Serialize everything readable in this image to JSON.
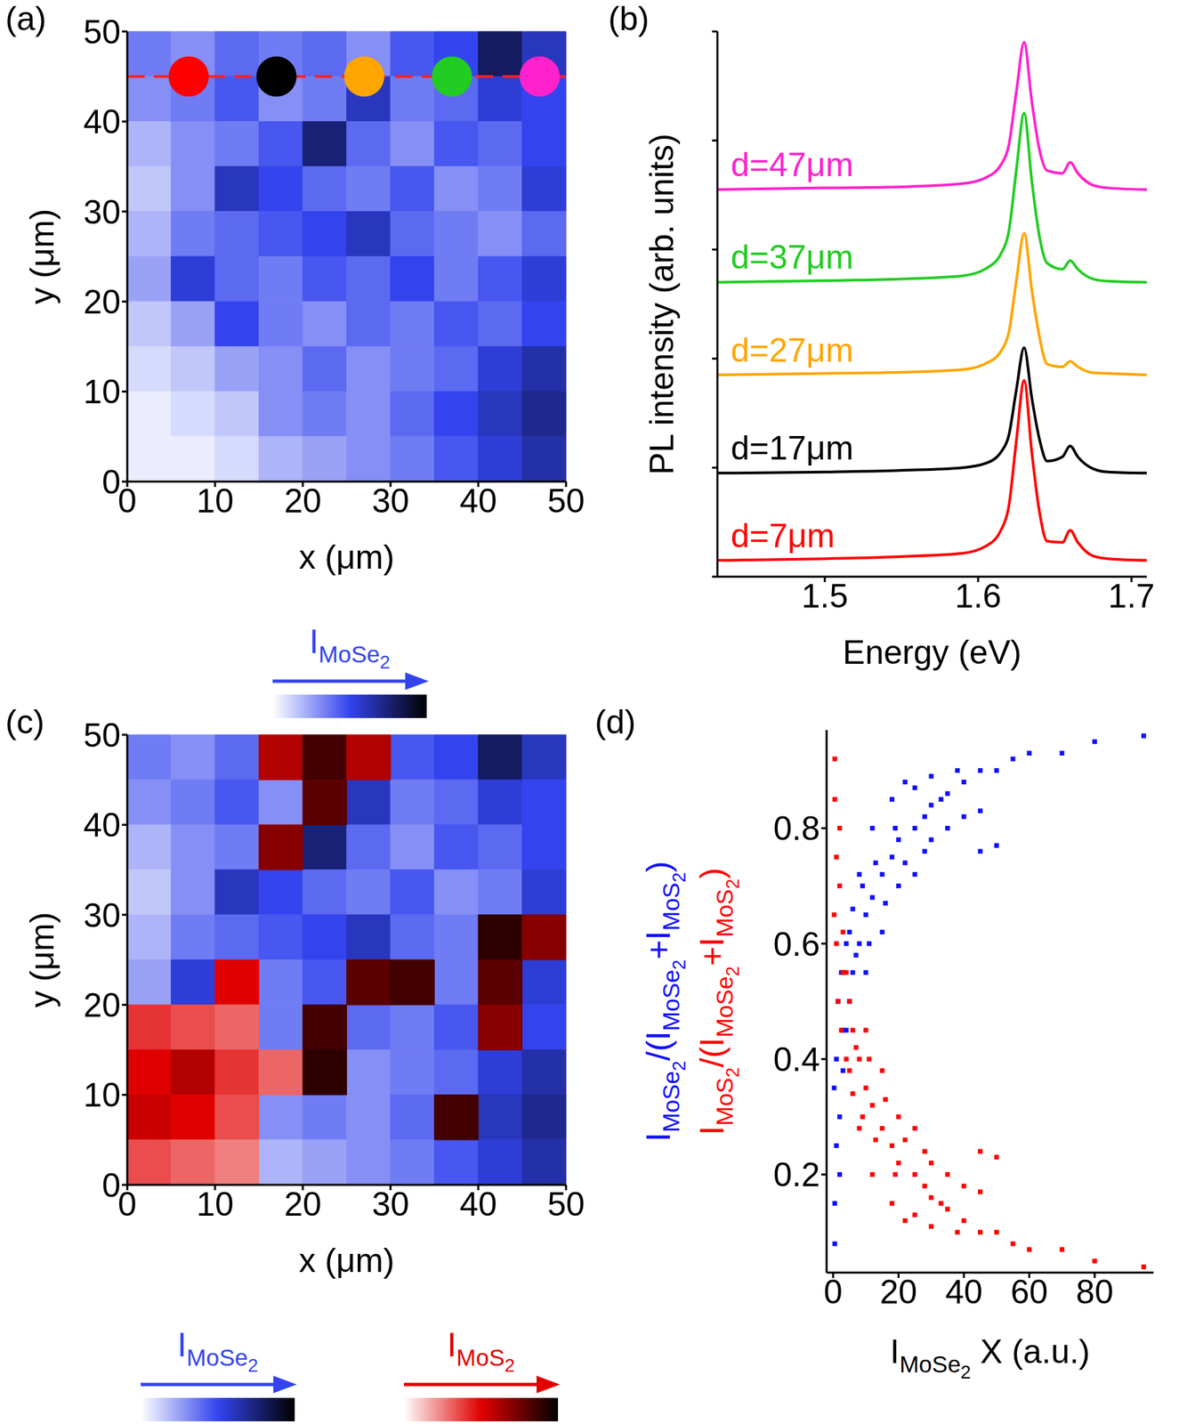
{
  "chart_data": [
    {
      "panel": "(a)",
      "type": "heatmap",
      "xlabel": "x (μm)",
      "ylabel": "y (μm)",
      "xlim": [
        0,
        50
      ],
      "ylim": [
        0,
        50
      ],
      "xticks": [
        0,
        10,
        20,
        30,
        40,
        50
      ],
      "yticks": [
        0,
        10,
        20,
        30,
        40,
        50
      ],
      "x_edges": [
        0,
        5,
        10,
        15,
        20,
        25,
        30,
        35,
        40,
        45,
        50
      ],
      "y_edges": [
        50,
        45,
        40,
        35,
        30,
        25,
        20,
        15,
        10,
        5,
        0
      ],
      "layers": [
        {
          "cells": [
            [
              0.35,
              0.3,
              0.4,
              0.35,
              0.4,
              0.3,
              0.45,
              0.5,
              0.8,
              0.6
            ],
            [
              0.3,
              0.35,
              0.45,
              0.3,
              0.35,
              0.6,
              0.35,
              0.4,
              0.55,
              0.5
            ],
            [
              0.2,
              0.3,
              0.35,
              0.45,
              0.75,
              0.4,
              0.3,
              0.45,
              0.4,
              0.5
            ],
            [
              0.15,
              0.3,
              0.6,
              0.5,
              0.4,
              0.35,
              0.45,
              0.3,
              0.35,
              0.55
            ],
            [
              0.2,
              0.35,
              0.4,
              0.45,
              0.5,
              0.6,
              0.4,
              0.35,
              0.3,
              0.4
            ],
            [
              0.25,
              0.55,
              0.4,
              0.35,
              0.45,
              0.4,
              0.5,
              0.35,
              0.45,
              0.55
            ],
            [
              0.15,
              0.25,
              0.5,
              0.35,
              0.3,
              0.4,
              0.35,
              0.45,
              0.4,
              0.5
            ],
            [
              0.1,
              0.15,
              0.25,
              0.3,
              0.4,
              0.3,
              0.35,
              0.4,
              0.55,
              0.65
            ],
            [
              0.05,
              0.1,
              0.15,
              0.3,
              0.35,
              0.3,
              0.4,
              0.5,
              0.6,
              0.7
            ],
            [
              0.05,
              0.05,
              0.1,
              0.2,
              0.25,
              0.3,
              0.35,
              0.45,
              0.55,
              0.65
            ]
          ],
          "colorbar": {
            "label": [
              {
                "t": "I"
              },
              {
                "sub": "MoSe"
              },
              {
                "sub2": "2"
              }
            ],
            "range": [
              0,
              1
            ],
            "colors": [
              "#ffffff",
              "#3344ee",
              "#000000"
            ]
          }
        }
      ],
      "markers": {
        "y": 45,
        "x": [
          7,
          17,
          27,
          37,
          47
        ],
        "colors": [
          "#ff0000",
          "#000000",
          "#ffa500",
          "#22cc22",
          "#ff22cc"
        ],
        "line_color": "#ff2020",
        "line_style": "dashed"
      }
    },
    {
      "panel": "(b)",
      "type": "line",
      "xlabel": "Energy (eV)",
      "ylabel": "PL intensity (arb. units)",
      "xlim": [
        1.43,
        1.71
      ],
      "ylim": [
        0,
        10
      ],
      "xticks": [
        1.5,
        1.6,
        1.7
      ],
      "yticks": [
        0,
        2,
        4,
        6,
        8,
        10
      ],
      "tick_labels": "x",
      "x": [
        1.43,
        1.5,
        1.55,
        1.59,
        1.605,
        1.615,
        1.62,
        1.625,
        1.63,
        1.635,
        1.64,
        1.645,
        1.655,
        1.66,
        1.665,
        1.675,
        1.685,
        1.71
      ],
      "series": [
        {
          "name": "d=7μm",
          "color": "#ff0000",
          "values": [
            0.3,
            0.33,
            0.37,
            0.43,
            0.56,
            0.86,
            1.29,
            2.51,
            3.6,
            2.28,
            1.19,
            0.65,
            0.63,
            0.85,
            0.63,
            0.38,
            0.33,
            0.3
          ]
        },
        {
          "name": "d=17μm",
          "color": "#000000",
          "values": [
            1.9,
            1.92,
            1.95,
            2.0,
            2.08,
            2.29,
            2.59,
            3.44,
            4.2,
            3.28,
            2.52,
            2.12,
            2.2,
            2.4,
            2.2,
            1.98,
            1.92,
            1.9
          ]
        },
        {
          "name": "d=27μm",
          "color": "#ffa500",
          "values": [
            3.7,
            3.73,
            3.75,
            3.8,
            3.91,
            4.14,
            4.48,
            5.44,
            6.3,
            5.26,
            4.4,
            3.9,
            3.85,
            3.95,
            3.85,
            3.74,
            3.73,
            3.7
          ]
        },
        {
          "name": "d=37μm",
          "color": "#22cc22",
          "values": [
            5.4,
            5.43,
            5.46,
            5.52,
            5.65,
            5.93,
            6.33,
            7.48,
            8.5,
            7.26,
            6.24,
            5.75,
            5.64,
            5.8,
            5.64,
            5.46,
            5.42,
            5.4
          ]
        },
        {
          "name": "d=47μm",
          "color": "#ff22cc",
          "values": [
            7.1,
            7.13,
            7.15,
            7.21,
            7.32,
            7.56,
            7.91,
            8.91,
            9.8,
            8.72,
            7.83,
            7.45,
            7.4,
            7.6,
            7.4,
            7.18,
            7.13,
            7.1
          ]
        }
      ]
    },
    {
      "panel": "(c)",
      "type": "heatmap",
      "xlabel": "x (μm)",
      "ylabel": "y (μm)",
      "xlim": [
        0,
        50
      ],
      "ylim": [
        0,
        50
      ],
      "xticks": [
        0,
        10,
        20,
        30,
        40,
        50
      ],
      "yticks": [
        0,
        10,
        20,
        30,
        40,
        50
      ],
      "x_edges": [
        0,
        5,
        10,
        15,
        20,
        25,
        30,
        35,
        40,
        45,
        50
      ],
      "y_edges": [
        50,
        45,
        40,
        35,
        30,
        25,
        20,
        15,
        10,
        5,
        0
      ],
      "layers": [
        {
          "cells": [
            [
              0.35,
              0.3,
              0.4,
              null,
              null,
              null,
              0.45,
              0.5,
              0.8,
              0.6
            ],
            [
              0.3,
              0.35,
              0.45,
              0.3,
              null,
              0.6,
              0.35,
              0.4,
              0.55,
              0.5
            ],
            [
              0.2,
              0.3,
              0.35,
              null,
              0.75,
              0.4,
              0.3,
              0.45,
              0.4,
              0.5
            ],
            [
              0.15,
              0.3,
              0.6,
              0.5,
              0.4,
              0.35,
              0.45,
              0.3,
              0.35,
              0.55
            ],
            [
              0.2,
              0.35,
              0.4,
              0.45,
              0.5,
              0.6,
              0.4,
              0.35,
              null,
              null
            ],
            [
              0.25,
              0.55,
              null,
              0.35,
              0.45,
              null,
              null,
              0.35,
              null,
              0.55
            ],
            [
              null,
              null,
              null,
              0.35,
              null,
              0.4,
              0.35,
              0.45,
              null,
              0.5
            ],
            [
              null,
              null,
              null,
              null,
              null,
              0.3,
              0.35,
              0.4,
              0.55,
              0.65
            ],
            [
              null,
              null,
              null,
              0.3,
              0.35,
              0.3,
              0.4,
              null,
              0.6,
              0.7
            ],
            [
              null,
              null,
              null,
              0.2,
              0.25,
              0.3,
              0.35,
              0.45,
              0.55,
              0.65
            ]
          ],
          "colorbar": {
            "label": [
              {
                "t": "I"
              },
              {
                "sub": "MoSe"
              },
              {
                "sub2": "2"
              }
            ],
            "range": [
              0,
              1
            ],
            "colors": [
              "#ffffff",
              "#3344ee",
              "#000000"
            ]
          }
        },
        {
          "cells": [
            [
              null,
              null,
              null,
              0.6,
              0.85,
              0.6,
              null,
              null,
              null,
              null
            ],
            [
              null,
              null,
              null,
              null,
              0.8,
              null,
              null,
              null,
              null,
              null
            ],
            [
              null,
              null,
              null,
              0.7,
              null,
              null,
              null,
              null,
              null,
              null
            ],
            [
              null,
              null,
              null,
              null,
              null,
              null,
              null,
              null,
              null,
              null
            ],
            [
              null,
              null,
              null,
              null,
              null,
              null,
              null,
              null,
              0.9,
              0.7
            ],
            [
              null,
              null,
              0.5,
              null,
              null,
              0.8,
              0.85,
              null,
              0.8,
              null
            ],
            [
              0.4,
              0.35,
              0.3,
              null,
              0.85,
              null,
              null,
              null,
              0.7,
              null
            ],
            [
              0.5,
              0.6,
              0.4,
              0.3,
              0.9,
              null,
              null,
              null,
              null,
              null
            ],
            [
              0.55,
              0.5,
              0.35,
              null,
              null,
              null,
              null,
              0.85,
              null,
              null
            ],
            [
              0.35,
              0.3,
              0.25,
              null,
              null,
              null,
              null,
              null,
              null,
              null
            ]
          ],
          "colorbar": {
            "label": [
              {
                "t": "I"
              },
              {
                "sub": "MoS"
              },
              {
                "sub2": "2"
              }
            ],
            "range": [
              0,
              1
            ],
            "colors": [
              "#ffffff",
              "#e00000",
              "#000000"
            ]
          }
        }
      ]
    },
    {
      "panel": "(d)",
      "type": "scatter",
      "xlabel": [
        {
          "t": "I"
        },
        {
          "sub": "MoSe"
        },
        {
          "sub2": "2"
        },
        {
          "t": " X (a.u.)"
        }
      ],
      "ylabel": [
        [
          {
            "t": "I"
          },
          {
            "sub": "MoSe"
          },
          {
            "sub2": "2"
          },
          {
            "t": "/(I"
          },
          {
            "sub": "MoSe"
          },
          {
            "sub2": "2"
          },
          {
            "t": "+I"
          },
          {
            "sub": "MoS"
          },
          {
            "sub2": "2"
          },
          {
            "t": ")"
          }
        ],
        [
          {
            "t": "I"
          },
          {
            "sub": "MoS"
          },
          {
            "sub2": "2"
          },
          {
            "t": "/(I"
          },
          {
            "sub": "MoSe"
          },
          {
            "sub2": "2"
          },
          {
            "t": "+I"
          },
          {
            "sub": "MoS"
          },
          {
            "sub2": "2"
          },
          {
            "t": ")"
          }
        ]
      ],
      "xlim": [
        -2,
        98
      ],
      "ylim": [
        0.03,
        0.97
      ],
      "xticks": [
        0,
        20,
        40,
        60,
        80
      ],
      "yticks": [
        0.2,
        0.4,
        0.6,
        0.8
      ],
      "series": [
        {
          "color": "#1010ff",
          "x": [
            0.5,
            0.5,
            1,
            2,
            3,
            4,
            5,
            6,
            8,
            10,
            12,
            15,
            18,
            20,
            25,
            30,
            35,
            40,
            45,
            50,
            55,
            60,
            70,
            80,
            95,
            10,
            15,
            20,
            25,
            30,
            35,
            40,
            45,
            12,
            18,
            25,
            8,
            5,
            3,
            2,
            50,
            45,
            38,
            30,
            22,
            0.3,
            1,
            1.5,
            2.5,
            4,
            6,
            7,
            9,
            11,
            13,
            16,
            19,
            22,
            28,
            33,
            28
          ],
          "values": [
            0.08,
            0.15,
            0.25,
            0.3,
            0.38,
            0.45,
            0.5,
            0.55,
            0.6,
            0.65,
            0.68,
            0.72,
            0.75,
            0.78,
            0.8,
            0.84,
            0.86,
            0.88,
            0.9,
            0.9,
            0.92,
            0.93,
            0.93,
            0.95,
            0.96,
            0.55,
            0.62,
            0.7,
            0.72,
            0.78,
            0.8,
            0.82,
            0.76,
            0.8,
            0.85,
            0.87,
            0.72,
            0.62,
            0.45,
            0.2,
            0.77,
            0.83,
            0.9,
            0.89,
            0.88,
            0.35,
            0.4,
            0.5,
            0.55,
            0.6,
            0.66,
            0.58,
            0.7,
            0.6,
            0.74,
            0.67,
            0.8,
            0.74,
            0.82,
            0.85,
            0.76
          ]
        },
        {
          "color": "#ff0000",
          "x": [
            0.5,
            0.5,
            1,
            2,
            3,
            4,
            5,
            6,
            8,
            10,
            12,
            15,
            18,
            20,
            25,
            30,
            35,
            40,
            45,
            50,
            55,
            60,
            70,
            80,
            95,
            10,
            15,
            20,
            25,
            30,
            35,
            40,
            45,
            12,
            18,
            25,
            8,
            5,
            3,
            2,
            50,
            45,
            38,
            30,
            22,
            0.3,
            1,
            1.5,
            2.5,
            4,
            6,
            7,
            9,
            11,
            13,
            16,
            19,
            22,
            28,
            33,
            28
          ],
          "values": [
            0.92,
            0.85,
            0.75,
            0.7,
            0.62,
            0.55,
            0.5,
            0.45,
            0.4,
            0.35,
            0.32,
            0.28,
            0.25,
            0.22,
            0.2,
            0.16,
            0.14,
            0.12,
            0.1,
            0.1,
            0.08,
            0.07,
            0.07,
            0.05,
            0.04,
            0.45,
            0.38,
            0.3,
            0.28,
            0.22,
            0.2,
            0.18,
            0.24,
            0.2,
            0.15,
            0.13,
            0.28,
            0.38,
            0.55,
            0.8,
            0.23,
            0.17,
            0.1,
            0.11,
            0.12,
            0.65,
            0.6,
            0.5,
            0.45,
            0.4,
            0.34,
            0.42,
            0.3,
            0.4,
            0.26,
            0.33,
            0.2,
            0.26,
            0.18,
            0.15,
            0.24
          ]
        }
      ]
    }
  ]
}
